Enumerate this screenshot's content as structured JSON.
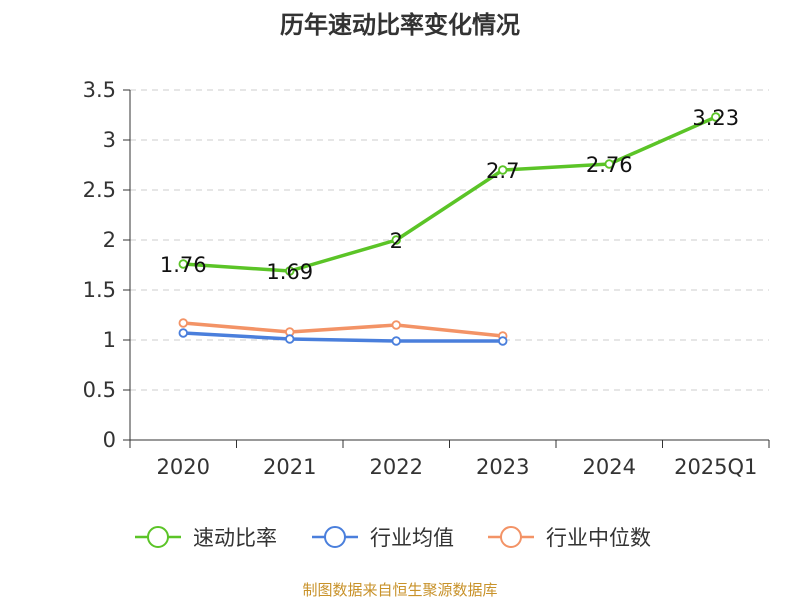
{
  "chart_data": {
    "type": "line",
    "title": "历年速动比率变化情况",
    "categories": [
      "2020",
      "2021",
      "2022",
      "2023",
      "2024",
      "2025Q1"
    ],
    "ylim": [
      0,
      3.5
    ],
    "yticks": [
      "0",
      "0.5",
      "1",
      "1.5",
      "2",
      "2.5",
      "3",
      "3.5"
    ],
    "grid": true,
    "legend_position": "bottom",
    "series": [
      {
        "name": "速动比率",
        "color": "#5bc427",
        "values": [
          1.76,
          1.69,
          2,
          2.7,
          2.76,
          3.23
        ],
        "labels": [
          "1.76",
          "1.69",
          "2",
          "2.7",
          "2.76",
          "3.23"
        ]
      },
      {
        "name": "行业均值",
        "color": "#4a7fdc",
        "values": [
          1.07,
          1.01,
          0.99,
          0.99,
          null,
          null
        ]
      },
      {
        "name": "行业中位数",
        "color": "#f39366",
        "values": [
          1.17,
          1.08,
          1.15,
          1.04,
          null,
          null
        ]
      }
    ]
  },
  "source_text": "制图数据来自恒生聚源数据库",
  "source_color": "#c8922a"
}
